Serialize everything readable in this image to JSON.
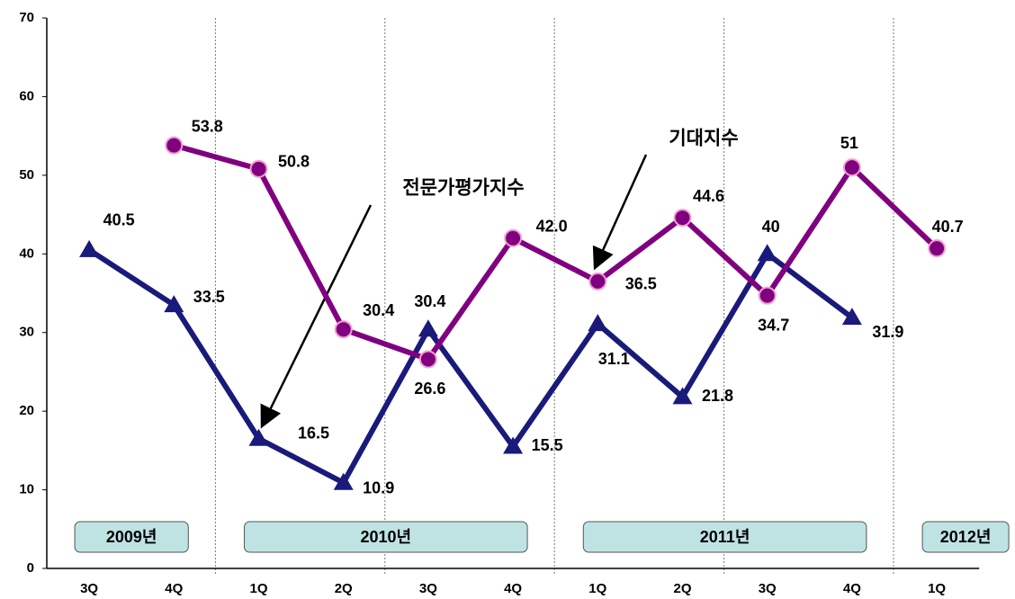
{
  "chart_data": {
    "type": "line",
    "categories": [
      "3Q",
      "4Q",
      "1Q",
      "2Q",
      "3Q",
      "4Q",
      "1Q",
      "2Q",
      "3Q",
      "4Q",
      "1Q"
    ],
    "series": [
      {
        "name": "전문가평가지수",
        "color": "#1a1a7a",
        "marker": "triangle",
        "values": [
          40.5,
          33.5,
          16.5,
          10.9,
          30.4,
          15.5,
          31.1,
          21.8,
          40,
          31.9,
          null
        ],
        "value_labels": [
          "40.5",
          "33.5",
          "16.5",
          "10.9",
          "30.4",
          "15.5",
          "31.1",
          "21.8",
          "40",
          "31.9",
          null
        ]
      },
      {
        "name": "기대지수",
        "color": "#800080",
        "marker": "circle",
        "values": [
          null,
          53.8,
          50.8,
          30.4,
          26.6,
          42,
          36.5,
          44.6,
          34.7,
          51,
          40.7
        ],
        "value_labels": [
          null,
          "53.8",
          "50.8",
          "30.4",
          "26.6",
          "42.0",
          "36.5",
          "44.6",
          "34.7",
          "51",
          "40.7"
        ]
      }
    ],
    "year_labels": [
      "2009년",
      "2010년",
      "2011년",
      "2012년"
    ],
    "ylim": [
      0,
      70
    ],
    "yticks": [
      0,
      10,
      20,
      30,
      40,
      50,
      60,
      70
    ],
    "grid": false
  }
}
